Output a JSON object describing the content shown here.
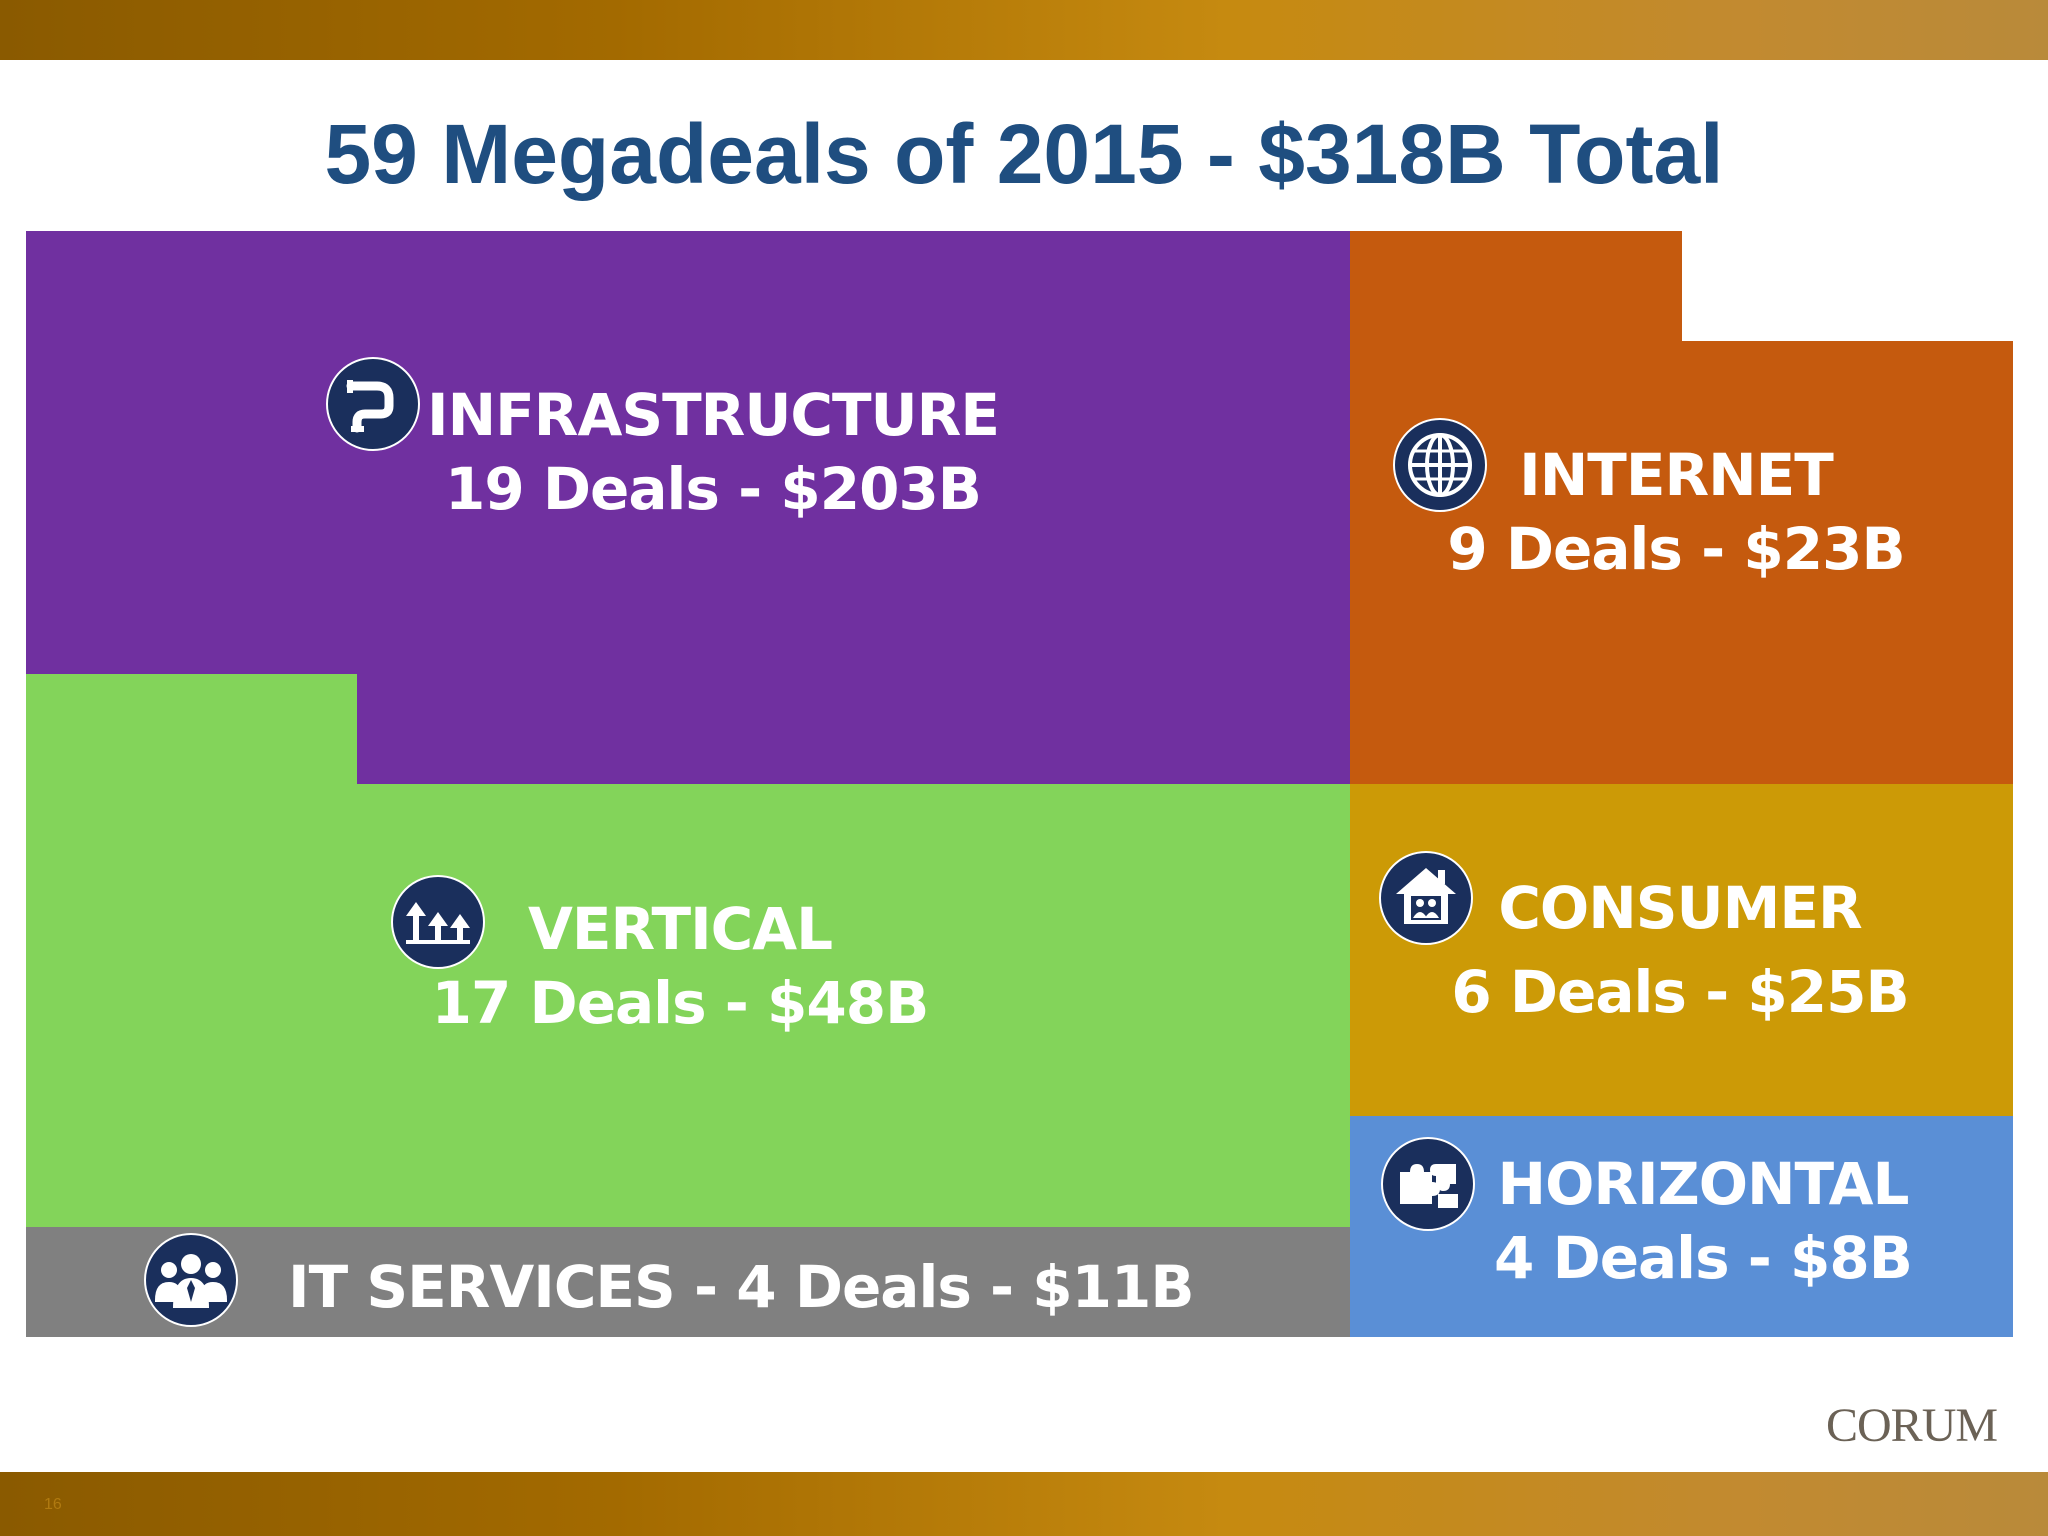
{
  "slide": {
    "title": "59 Megadeals of 2015 - $318B Total",
    "logo": "CORUM",
    "slide_number": "16"
  },
  "colors": {
    "infrastructure": "#7030a0",
    "internet": "#c55a0e",
    "vertical": "#83d45a",
    "consumer": "#cc9a06",
    "horizontal": "#5a8fd6",
    "it_services": "#808080",
    "icon_circle": "#1a2f5c",
    "title": "#1f4e80"
  },
  "chart_data": {
    "type": "treemap",
    "title": "59 Megadeals of 2015 - $318B Total",
    "total_deals": 59,
    "total_value_billion": 318,
    "segments": [
      {
        "key": "infrastructure",
        "name": "INFRASTRUCTURE",
        "deals": 19,
        "value_billion": 203,
        "detail": "19 Deals - $203B",
        "icon": "pipe-icon"
      },
      {
        "key": "internet",
        "name": "INTERNET",
        "deals": 9,
        "value_billion": 23,
        "detail": "9 Deals - $23B",
        "icon": "globe-icon"
      },
      {
        "key": "vertical",
        "name": "VERTICAL",
        "deals": 17,
        "value_billion": 48,
        "detail": "17 Deals - $48B",
        "icon": "arrows-up-icon"
      },
      {
        "key": "consumer",
        "name": "CONSUMER",
        "deals": 6,
        "value_billion": 25,
        "detail": "6 Deals - $25B",
        "icon": "house-icon"
      },
      {
        "key": "horizontal",
        "name": "HORIZONTAL",
        "deals": 4,
        "value_billion": 8,
        "detail": "4 Deals - $8B",
        "icon": "puzzle-icon"
      },
      {
        "key": "it_services",
        "name": "IT SERVICES",
        "deals": 4,
        "value_billion": 11,
        "detail": "IT SERVICES - 4 Deals - $11B",
        "icon": "people-icon"
      }
    ]
  }
}
